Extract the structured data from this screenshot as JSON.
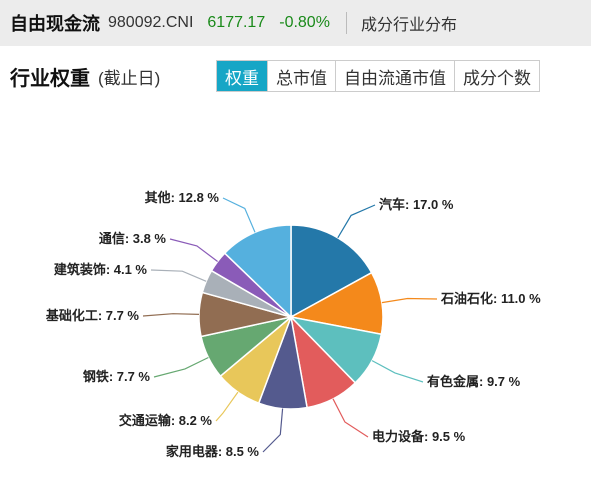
{
  "header": {
    "index_name": "自由现金流",
    "index_code": "980092.CNI",
    "price": "6177.17",
    "change": "-0.80%",
    "link": "成分行业分布"
  },
  "section": {
    "title": "行业权重",
    "note": "(截止日)"
  },
  "tabs": [
    "权重",
    "总市值",
    "自由流通市值",
    "成分个数"
  ],
  "active_tab": 0,
  "chart_data": {
    "type": "pie",
    "unit": "%",
    "slices": [
      {
        "label": "汽车",
        "value": 17.0,
        "color": "#2478a9"
      },
      {
        "label": "石油石化",
        "value": 11.0,
        "color": "#f4891b"
      },
      {
        "label": "有色金属",
        "value": 9.7,
        "color": "#5dbfbe"
      },
      {
        "label": "电力设备",
        "value": 9.5,
        "color": "#e25c5c"
      },
      {
        "label": "家用电器",
        "value": 8.5,
        "color": "#545a8e"
      },
      {
        "label": "交通运输",
        "value": 8.2,
        "color": "#e8c75a"
      },
      {
        "label": "钢铁",
        "value": 7.7,
        "color": "#66a871"
      },
      {
        "label": "基础化工",
        "value": 7.7,
        "color": "#916d52"
      },
      {
        "label": "建筑装饰",
        "value": 4.1,
        "color": "#a9b0b8"
      },
      {
        "label": "通信",
        "value": 3.8,
        "color": "#8a5bb8"
      },
      {
        "label": "其他",
        "value": 12.8,
        "color": "#55b0de"
      }
    ]
  }
}
